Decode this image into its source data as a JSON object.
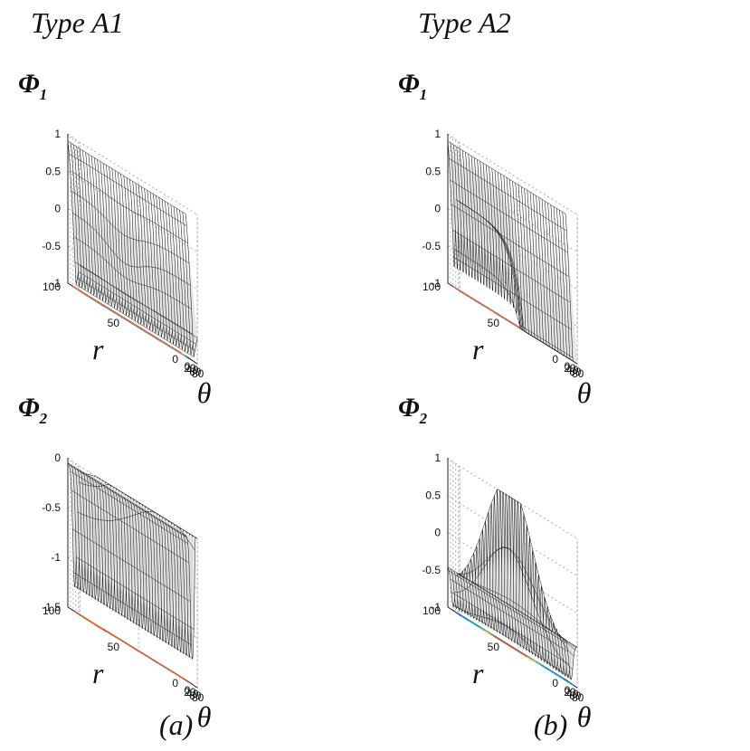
{
  "columns": [
    {
      "title": "Type A1",
      "caption": "(a)"
    },
    {
      "title": "Type A2",
      "caption": "(b)"
    }
  ],
  "chart_data": [
    {
      "type": "surface",
      "id": "A1-phi1",
      "title": "Φ",
      "title_subscript": "1",
      "zlabel": "Φ₁",
      "xlabel": "θ",
      "ylabel": "r",
      "xlim": [
        0,
        90
      ],
      "ylim": [
        0,
        100
      ],
      "zlim": [
        -1,
        1
      ],
      "xticks": [
        "0",
        "20",
        "40",
        "60",
        "80"
      ],
      "yticks": [
        "0",
        "50",
        "100"
      ],
      "zticks": [
        "1",
        "0.5",
        "0",
        "-0.5",
        "-1"
      ],
      "contours": "projected on floor",
      "surface_profile": "edge-on ridge descending from 0.9 at theta=0 to about -0.9 near theta=60, with sheared fold near r=50"
    },
    {
      "type": "surface",
      "id": "A2-phi1",
      "title": "Φ",
      "title_subscript": "1",
      "zlabel": "Φ₁",
      "xlabel": "θ",
      "ylabel": "r",
      "xlim": [
        0,
        90
      ],
      "ylim": [
        0,
        100
      ],
      "zlim": [
        -1,
        1
      ],
      "xticks": [
        "0",
        "20",
        "40",
        "60",
        "80"
      ],
      "yticks": [
        "0",
        "50",
        "100"
      ],
      "zticks": [
        "1",
        "0.5",
        "0",
        "-0.5",
        "-1"
      ],
      "contours": "projected on floor",
      "surface_profile": "starts at 0.9 at theta=0, drops to about -0.9 near theta=55, step near r=50 rising back to 0.5"
    },
    {
      "type": "surface",
      "id": "A1-phi2",
      "title": "Φ",
      "title_subscript": "2",
      "zlabel": "Φ₂",
      "xlabel": "θ",
      "ylabel": "r",
      "xlim": [
        0,
        90
      ],
      "ylim": [
        0,
        100
      ],
      "zlim": [
        -1.5,
        0
      ],
      "xticks": [
        "0",
        "20",
        "40",
        "60",
        "80"
      ],
      "yticks": [
        "0",
        "50",
        "100"
      ],
      "zticks": [
        "0",
        "-0.5",
        "-1",
        "-1.5"
      ],
      "contours": "projected on floor",
      "surface_profile": "valley reaching about -1.2 near theta=50, rising back to 0 at both ends"
    },
    {
      "type": "surface",
      "id": "A2-phi2",
      "title": "Φ",
      "title_subscript": "2",
      "zlabel": "Φ₂",
      "xlabel": "θ",
      "ylabel": "r",
      "xlim": [
        0,
        90
      ],
      "ylim": [
        0,
        100
      ],
      "zlim": [
        -1,
        1
      ],
      "xticks": [
        "0",
        "20",
        "40",
        "60",
        "80"
      ],
      "yticks": [
        "0",
        "50",
        "100"
      ],
      "zticks": [
        "1",
        "0.5",
        "0",
        "-0.5",
        "-1"
      ],
      "contours": "projected on floor",
      "surface_profile": "valley near -1 at theta=45 for small r, large peak up to 1 at theta=60 near r=50"
    }
  ],
  "colors": {
    "background": "#ffffff",
    "mesh_line": "#1a1a1a",
    "mesh_fill": "#e2e2e2",
    "grid": "#9a9a9a",
    "contour_palette": [
      "#1f3fb5",
      "#2c6ee0",
      "#17a8d6",
      "#22c9b8",
      "#8ad64a",
      "#e8d83a",
      "#f0a030",
      "#e0503a"
    ]
  }
}
